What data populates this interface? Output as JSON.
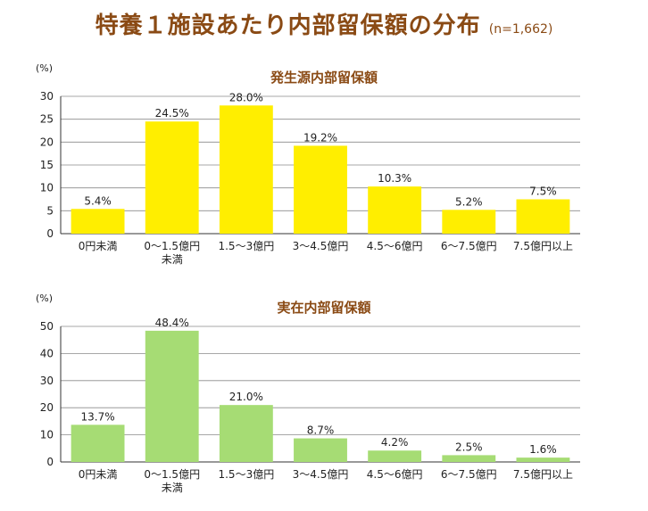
{
  "title": "特養１施設あたり内部留保額の分布",
  "sample_note": "(n=1,662)",
  "chart_data": [
    {
      "type": "bar",
      "title": "発生源内部留保額",
      "ylabel": "(%)",
      "ylim": [
        0,
        30
      ],
      "yticks": [
        "0",
        "5",
        "10",
        "15",
        "20",
        "25",
        "30"
      ],
      "grid": true,
      "bar_color": "#ffee00",
      "categories": [
        [
          "0円未満"
        ],
        [
          "0～1.5億円",
          "未満"
        ],
        [
          "1.5～3億円"
        ],
        [
          "3～4.5億円"
        ],
        [
          "4.5～6億円"
        ],
        [
          "6～7.5億円"
        ],
        [
          "7.5億円以上"
        ]
      ],
      "values": [
        5.4,
        24.5,
        28.0,
        19.2,
        10.3,
        5.2,
        7.5
      ],
      "value_labels": [
        "5.4%",
        "24.5%",
        "28.0%",
        "19.2%",
        "10.3%",
        "5.2%",
        "7.5%"
      ]
    },
    {
      "type": "bar",
      "title": "実在内部留保額",
      "ylabel": "(%)",
      "ylim": [
        0,
        50
      ],
      "yticks": [
        "0",
        "10",
        "20",
        "30",
        "40",
        "50"
      ],
      "grid": true,
      "bar_color": "#a6dc74",
      "categories": [
        [
          "0円未満"
        ],
        [
          "0～1.5億円",
          "未満"
        ],
        [
          "1.5～3億円"
        ],
        [
          "3～4.5億円"
        ],
        [
          "4.5～6億円"
        ],
        [
          "6～7.5億円"
        ],
        [
          "7.5億円以上"
        ]
      ],
      "values": [
        13.7,
        48.4,
        21.0,
        8.7,
        4.2,
        2.5,
        1.6
      ],
      "value_labels": [
        "13.7%",
        "48.4%",
        "21.0%",
        "8.7%",
        "4.2%",
        "2.5%",
        "1.6%"
      ]
    }
  ]
}
